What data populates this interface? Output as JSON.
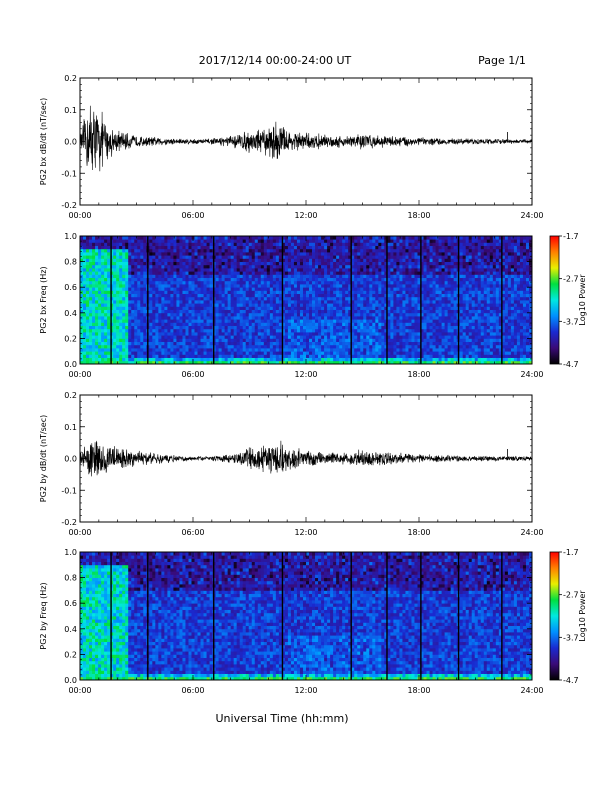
{
  "header": {
    "date_range": "2017/12/14  00:00-24:00 UT",
    "page": "Page 1/1"
  },
  "x_axis_title": "Universal Time (hh:mm)",
  "x_ticks": [
    "00:00",
    "06:00",
    "12:00",
    "18:00",
    "24:00"
  ],
  "colorbar": {
    "title": "Log10 Power",
    "ticks": [
      "-1.7",
      "-2.7",
      "-3.7",
      "-4.7"
    ],
    "colors": [
      "#000000",
      "#3a0a78",
      "#1a2ad0",
      "#0090ff",
      "#00e8e0",
      "#00e040",
      "#e8f000",
      "#ff8000",
      "#ff0000"
    ]
  },
  "chart_data": [
    {
      "type": "line",
      "ylabel": "PG2 bx dB/dt (nT/sec)",
      "xlim": [
        0,
        24
      ],
      "ylim": [
        -0.2,
        0.2
      ],
      "y_ticks": [
        "0.2",
        "0.1",
        "0.0",
        "-0.1",
        "-0.2"
      ],
      "envelope": {
        "t_hours": [
          0,
          0.5,
          1.0,
          1.5,
          2.0,
          3.0,
          4.0,
          5.0,
          6.0,
          7.0,
          8.0,
          9.0,
          10.0,
          10.5,
          11.0,
          12.0,
          13.0,
          14.0,
          15.0,
          16.0,
          17.0,
          18.0,
          19.0,
          20.0,
          21.0,
          22.0,
          23.0,
          24.0
        ],
        "amplitude": [
          0.02,
          0.15,
          0.12,
          0.06,
          0.04,
          0.02,
          0.015,
          0.012,
          0.01,
          0.01,
          0.02,
          0.04,
          0.05,
          0.08,
          0.04,
          0.03,
          0.025,
          0.02,
          0.03,
          0.02,
          0.02,
          0.015,
          0.012,
          0.01,
          0.01,
          0.01,
          0.008,
          0.008
        ]
      },
      "spikes": [
        {
          "t": 22.7,
          "value": 0.03
        }
      ]
    },
    {
      "type": "heatmap",
      "ylabel": "PG2 bx Freq (Hz)",
      "xlim": [
        0,
        24
      ],
      "ylim": [
        0.0,
        1.0
      ],
      "y_ticks": [
        "1.0",
        "0.8",
        "0.6",
        "0.4",
        "0.2",
        "0.0"
      ],
      "colorbar_range": [
        -4.7,
        -1.7
      ],
      "gap_lines_hours": [
        1.65,
        3.6,
        7.1,
        10.75,
        14.4,
        16.3,
        18.1,
        20.1,
        22.4
      ],
      "enhancement_bands": [
        {
          "t": [
            0,
            2.5
          ],
          "f_max": 0.9,
          "level": -2.8
        },
        {
          "t": [
            11,
            16
          ],
          "f_max": 0.35,
          "level": -3.5
        },
        {
          "t": [
            0,
            24
          ],
          "f_max": 0.05,
          "level": -3.0
        }
      ]
    },
    {
      "type": "line",
      "ylabel": "PG2 by dB/dt (nT/sec)",
      "xlim": [
        0,
        24
      ],
      "ylim": [
        -0.2,
        0.2
      ],
      "y_ticks": [
        "0.2",
        "0.1",
        "0.0",
        "-0.1",
        "-0.2"
      ],
      "envelope": {
        "t_hours": [
          0,
          0.5,
          1.0,
          1.5,
          2.0,
          3.0,
          4.0,
          5.0,
          6.0,
          7.0,
          8.0,
          9.0,
          10.0,
          10.5,
          11.0,
          12.0,
          13.0,
          14.0,
          15.0,
          16.0,
          17.0,
          18.0,
          19.0,
          20.0,
          21.0,
          22.0,
          23.0,
          24.0
        ],
        "amplitude": [
          0.02,
          0.08,
          0.07,
          0.05,
          0.04,
          0.03,
          0.02,
          0.012,
          0.008,
          0.008,
          0.015,
          0.04,
          0.05,
          0.07,
          0.04,
          0.03,
          0.02,
          0.02,
          0.035,
          0.025,
          0.02,
          0.015,
          0.012,
          0.01,
          0.01,
          0.01,
          0.008,
          0.008
        ]
      },
      "spikes": [
        {
          "t": 22.7,
          "value": 0.03
        }
      ]
    },
    {
      "type": "heatmap",
      "ylabel": "PG2 by Freq (Hz)",
      "xlim": [
        0,
        24
      ],
      "ylim": [
        0.0,
        1.0
      ],
      "y_ticks": [
        "1.0",
        "0.8",
        "0.6",
        "0.4",
        "0.2",
        "0.0"
      ],
      "colorbar_range": [
        -4.7,
        -1.7
      ],
      "gap_lines_hours": [
        1.65,
        3.6,
        7.1,
        10.75,
        14.4,
        16.3,
        18.1,
        20.1,
        22.4
      ],
      "enhancement_bands": [
        {
          "t": [
            0,
            2.5
          ],
          "f_max": 0.9,
          "level": -2.8
        },
        {
          "t": [
            11,
            16
          ],
          "f_max": 0.35,
          "level": -3.5
        },
        {
          "t": [
            0,
            24
          ],
          "f_max": 0.05,
          "level": -3.0
        }
      ]
    }
  ]
}
